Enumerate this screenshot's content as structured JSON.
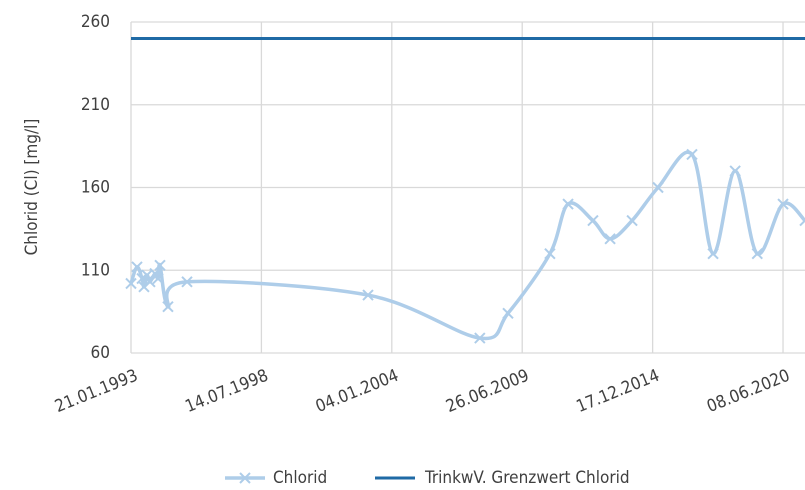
{
  "chart_data": {
    "type": "line",
    "y_label": "Chlorid (Cl) [mg/l]",
    "x": [
      "1993-01-21",
      "1993-04-23",
      "1993-07-09",
      "1993-08-08",
      "1993-09-23",
      "1993-11-08",
      "1994-01-24",
      "1994-03-11",
      "1994-04-11",
      "1994-08-11",
      "1995-05-30",
      "2003-01-04",
      "2007-09-15",
      "2008-11-20",
      "2010-08-25",
      "2011-05-30",
      "2012-06-15",
      "2013-03-05",
      "2014-02-05",
      "2015-03-10",
      "2016-08-12",
      "2017-07-01",
      "2018-06-05",
      "2019-05-10",
      "2020-06-08",
      "2021-05-11"
    ],
    "series": [
      {
        "name": "Chlorid",
        "color": "#aecde9",
        "marker": "x",
        "values": [
          102,
          112,
          105,
          100,
          107,
          103,
          108,
          105,
          113,
          88,
          103,
          95,
          69,
          84,
          120,
          150,
          140,
          129,
          140,
          160,
          180,
          120,
          170,
          120,
          150,
          140
        ]
      }
    ],
    "reference_line": {
      "name": "TrinkwV. Grenzwert Chlorid",
      "color": "#1f6aa5",
      "value": 250
    },
    "xlim": [
      "1993-01-21",
      "2021-05-11"
    ],
    "xticks": [
      {
        "value": "1993-01-21",
        "label": "21.01.1993"
      },
      {
        "value": "1998-07-14",
        "label": "14.07.1998"
      },
      {
        "value": "2004-01-04",
        "label": "04.01.2004"
      },
      {
        "value": "2009-06-26",
        "label": "26.06.2009"
      },
      {
        "value": "2014-12-17",
        "label": "17.12.2014"
      },
      {
        "value": "2020-06-08",
        "label": "08.06.2020"
      }
    ],
    "ylim": [
      60,
      260
    ],
    "yticks": [
      60,
      110,
      160,
      210,
      260
    ],
    "grid": true,
    "legend": "bottom"
  }
}
